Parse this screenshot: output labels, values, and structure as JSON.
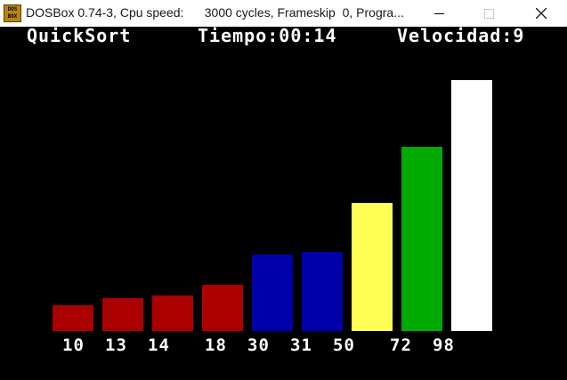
{
  "window": {
    "icon_label": "DOS BOX",
    "title": "DOSBox 0.74-3, Cpu speed:      3000 cycles, Frameskip  0, Progra..."
  },
  "header": {
    "algorithm": "QuickSort",
    "time": "Tiempo:00:14",
    "speed": "Velocidad:9"
  },
  "chart_data": {
    "type": "bar",
    "categories": [
      "10",
      "13",
      "14",
      "18",
      "30",
      "31",
      "50",
      "72",
      "98"
    ],
    "values": [
      10,
      13,
      14,
      18,
      30,
      31,
      50,
      72,
      98
    ],
    "colors": [
      "#aa0000",
      "#aa0000",
      "#aa0000",
      "#aa0000",
      "#0000aa",
      "#0000aa",
      "#ffff55",
      "#00aa00",
      "#ffffff"
    ],
    "ylim": [
      0,
      98
    ]
  }
}
